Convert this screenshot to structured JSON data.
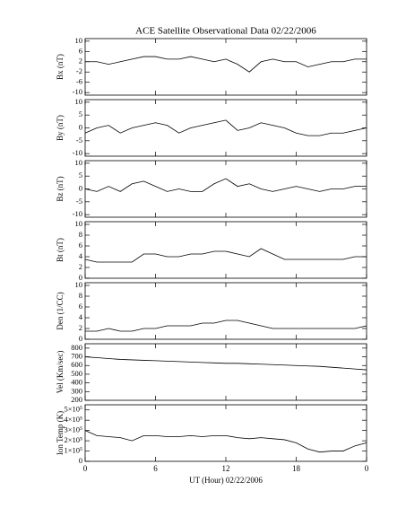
{
  "chart_data": [
    {
      "type": "line",
      "title": "ACE Satellite Observational Data   02/22/2006",
      "y_label": "Bx (nT)",
      "x": [
        0,
        1,
        2,
        3,
        4,
        5,
        6,
        7,
        8,
        9,
        10,
        11,
        12,
        13,
        14,
        15,
        16,
        17,
        18,
        19,
        20,
        21,
        22,
        23,
        24
      ],
      "values": [
        2,
        2,
        1,
        2,
        3,
        4,
        4,
        3,
        3,
        4,
        3,
        2,
        3,
        1,
        -2,
        2,
        3,
        2,
        2,
        0,
        1,
        2,
        2,
        3,
        3
      ],
      "xlim": [
        0,
        24
      ],
      "xticks": [
        0,
        6,
        12,
        18,
        {
          "value": 24,
          "label": "0"
        }
      ],
      "ylim": [
        -11,
        11
      ],
      "yticks": [
        -10,
        -6,
        -2,
        2,
        6,
        10
      ],
      "color": "#000000"
    },
    {
      "type": "line",
      "y_label": "By (nT)",
      "x": [
        0,
        1,
        2,
        3,
        4,
        5,
        6,
        7,
        8,
        9,
        10,
        11,
        12,
        13,
        14,
        15,
        16,
        17,
        18,
        19,
        20,
        21,
        22,
        23,
        24
      ],
      "values": [
        -2,
        0,
        1,
        -2,
        0,
        1,
        2,
        1,
        -2,
        0,
        1,
        2,
        3,
        -1,
        0,
        2,
        1,
        0,
        -2,
        -3,
        -3,
        -2,
        -2,
        -1,
        0
      ],
      "xlim": [
        0,
        24
      ],
      "xticks": [
        0,
        6,
        12,
        18,
        {
          "value": 24,
          "label": "0"
        }
      ],
      "ylim": [
        -11,
        11
      ],
      "yticks": [
        -10,
        -5,
        0,
        5,
        10
      ],
      "color": "#000000"
    },
    {
      "type": "line",
      "y_label": "Bz (nT)",
      "x": [
        0,
        1,
        2,
        3,
        4,
        5,
        6,
        7,
        8,
        9,
        10,
        11,
        12,
        13,
        14,
        15,
        16,
        17,
        18,
        19,
        20,
        21,
        22,
        23,
        24
      ],
      "values": [
        0,
        -1,
        1,
        -1,
        2,
        3,
        1,
        -1,
        0,
        -1,
        -1,
        2,
        4,
        1,
        2,
        0,
        -1,
        0,
        1,
        0,
        -1,
        0,
        0,
        1,
        1
      ],
      "xlim": [
        0,
        24
      ],
      "xticks": [
        0,
        6,
        12,
        18,
        {
          "value": 24,
          "label": "0"
        }
      ],
      "ylim": [
        -11,
        11
      ],
      "yticks": [
        -10,
        -5,
        0,
        5,
        10
      ],
      "color": "#000000"
    },
    {
      "type": "line",
      "y_label": "Bt (nT)",
      "x": [
        0,
        1,
        2,
        3,
        4,
        5,
        6,
        7,
        8,
        9,
        10,
        11,
        12,
        13,
        14,
        15,
        16,
        17,
        18,
        19,
        20,
        21,
        22,
        23,
        24
      ],
      "values": [
        3.5,
        3,
        3,
        3,
        3,
        4.5,
        4.5,
        4,
        4,
        4.5,
        4.5,
        5,
        5,
        4.5,
        4,
        5.5,
        4.5,
        3.5,
        3.5,
        3.5,
        3.5,
        3.5,
        3.5,
        4,
        4
      ],
      "xlim": [
        0,
        24
      ],
      "xticks": [
        0,
        6,
        12,
        18,
        {
          "value": 24,
          "label": "0"
        }
      ],
      "ylim": [
        0,
        10.5
      ],
      "yticks": [
        0,
        2,
        4,
        6,
        8,
        10
      ],
      "color": "#000000"
    },
    {
      "type": "line",
      "y_label": "Den (1/CC)",
      "x": [
        0,
        1,
        2,
        3,
        4,
        5,
        6,
        7,
        8,
        9,
        10,
        11,
        12,
        13,
        14,
        15,
        16,
        17,
        18,
        19,
        20,
        21,
        22,
        23,
        24
      ],
      "values": [
        1.5,
        1.5,
        2,
        1.5,
        1.5,
        2,
        2,
        2.5,
        2.5,
        2.5,
        3,
        3,
        3.5,
        3.5,
        3,
        2.5,
        2,
        2,
        2,
        2,
        2,
        2,
        2,
        2,
        2.5
      ],
      "xlim": [
        0,
        24
      ],
      "xticks": [
        0,
        6,
        12,
        18,
        {
          "value": 24,
          "label": "0"
        }
      ],
      "ylim": [
        0,
        10.5
      ],
      "yticks": [
        0,
        2,
        4,
        6,
        8,
        10
      ],
      "color": "#000000"
    },
    {
      "type": "line",
      "y_label": "Vel (Km/sec)",
      "x": [
        0,
        1,
        2,
        3,
        4,
        5,
        6,
        7,
        8,
        9,
        10,
        11,
        12,
        13,
        14,
        15,
        16,
        17,
        18,
        19,
        20,
        21,
        22,
        23,
        24
      ],
      "values": [
        700,
        690,
        680,
        670,
        665,
        660,
        655,
        650,
        645,
        640,
        635,
        630,
        625,
        625,
        620,
        615,
        610,
        605,
        600,
        595,
        590,
        580,
        570,
        560,
        550
      ],
      "xlim": [
        0,
        24
      ],
      "xticks": [
        0,
        6,
        12,
        18,
        {
          "value": 24,
          "label": "0"
        }
      ],
      "ylim": [
        200,
        850
      ],
      "yticks": [
        200,
        300,
        400,
        500,
        600,
        700,
        800
      ],
      "color": "#000000"
    },
    {
      "type": "line",
      "y_label": "Ion Temp (K)",
      "x_label": "UT (Hour)   02/22/2006",
      "x": [
        0,
        1,
        2,
        3,
        4,
        5,
        6,
        7,
        8,
        9,
        10,
        11,
        12,
        13,
        14,
        15,
        16,
        17,
        18,
        19,
        20,
        21,
        22,
        23,
        24
      ],
      "values": [
        300000,
        250000,
        240000,
        230000,
        200000,
        250000,
        250000,
        240000,
        240000,
        250000,
        240000,
        250000,
        250000,
        230000,
        220000,
        230000,
        220000,
        210000,
        180000,
        120000,
        90000,
        100000,
        100000,
        150000,
        180000
      ],
      "xlim": [
        0,
        24
      ],
      "xticks": [
        0,
        6,
        12,
        18,
        {
          "value": 24,
          "label": "0"
        }
      ],
      "ylim": [
        0,
        550000
      ],
      "yticks": [
        0,
        {
          "value": 100000,
          "label": "1×10⁵"
        },
        {
          "value": 200000,
          "label": "2×10⁵"
        },
        {
          "value": 300000,
          "label": "3×10⁵"
        },
        {
          "value": 400000,
          "label": "4×10⁵"
        },
        {
          "value": 500000,
          "label": "5×10⁵"
        }
      ],
      "color": "#000000"
    }
  ]
}
